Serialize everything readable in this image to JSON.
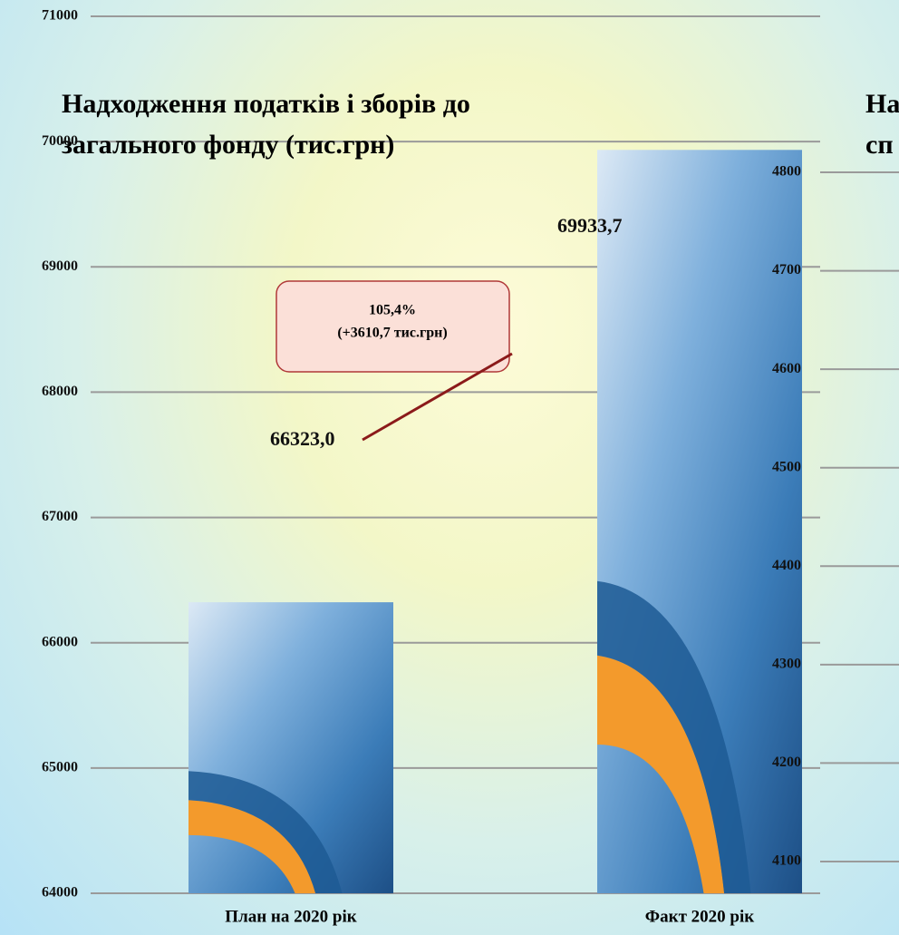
{
  "chart_data": [
    {
      "type": "bar",
      "title": [
        "Надходження податків і зборів до",
        "загального фонду (тис.грн)"
      ],
      "categories": [
        "План на 2020 рік",
        "Факт 2020 рік"
      ],
      "values": [
        66323.0,
        69933.7
      ],
      "value_labels": [
        "66323,0",
        "69933,7"
      ],
      "annotation": [
        "105,4%",
        "(+3610,7 тис.грн)"
      ],
      "ylim": [
        64000,
        71000
      ],
      "yticks": [
        64000,
        65000,
        66000,
        67000,
        68000,
        69000,
        70000,
        71000
      ],
      "grid": true,
      "color": "#3a78b5"
    },
    {
      "type": "bar",
      "title": [
        "На",
        "сп"
      ],
      "ylim": [
        4100,
        4800
      ],
      "yticks": [
        4100,
        4200,
        4300,
        4400,
        4500,
        4600,
        4700,
        4800
      ],
      "grid": true
    }
  ]
}
